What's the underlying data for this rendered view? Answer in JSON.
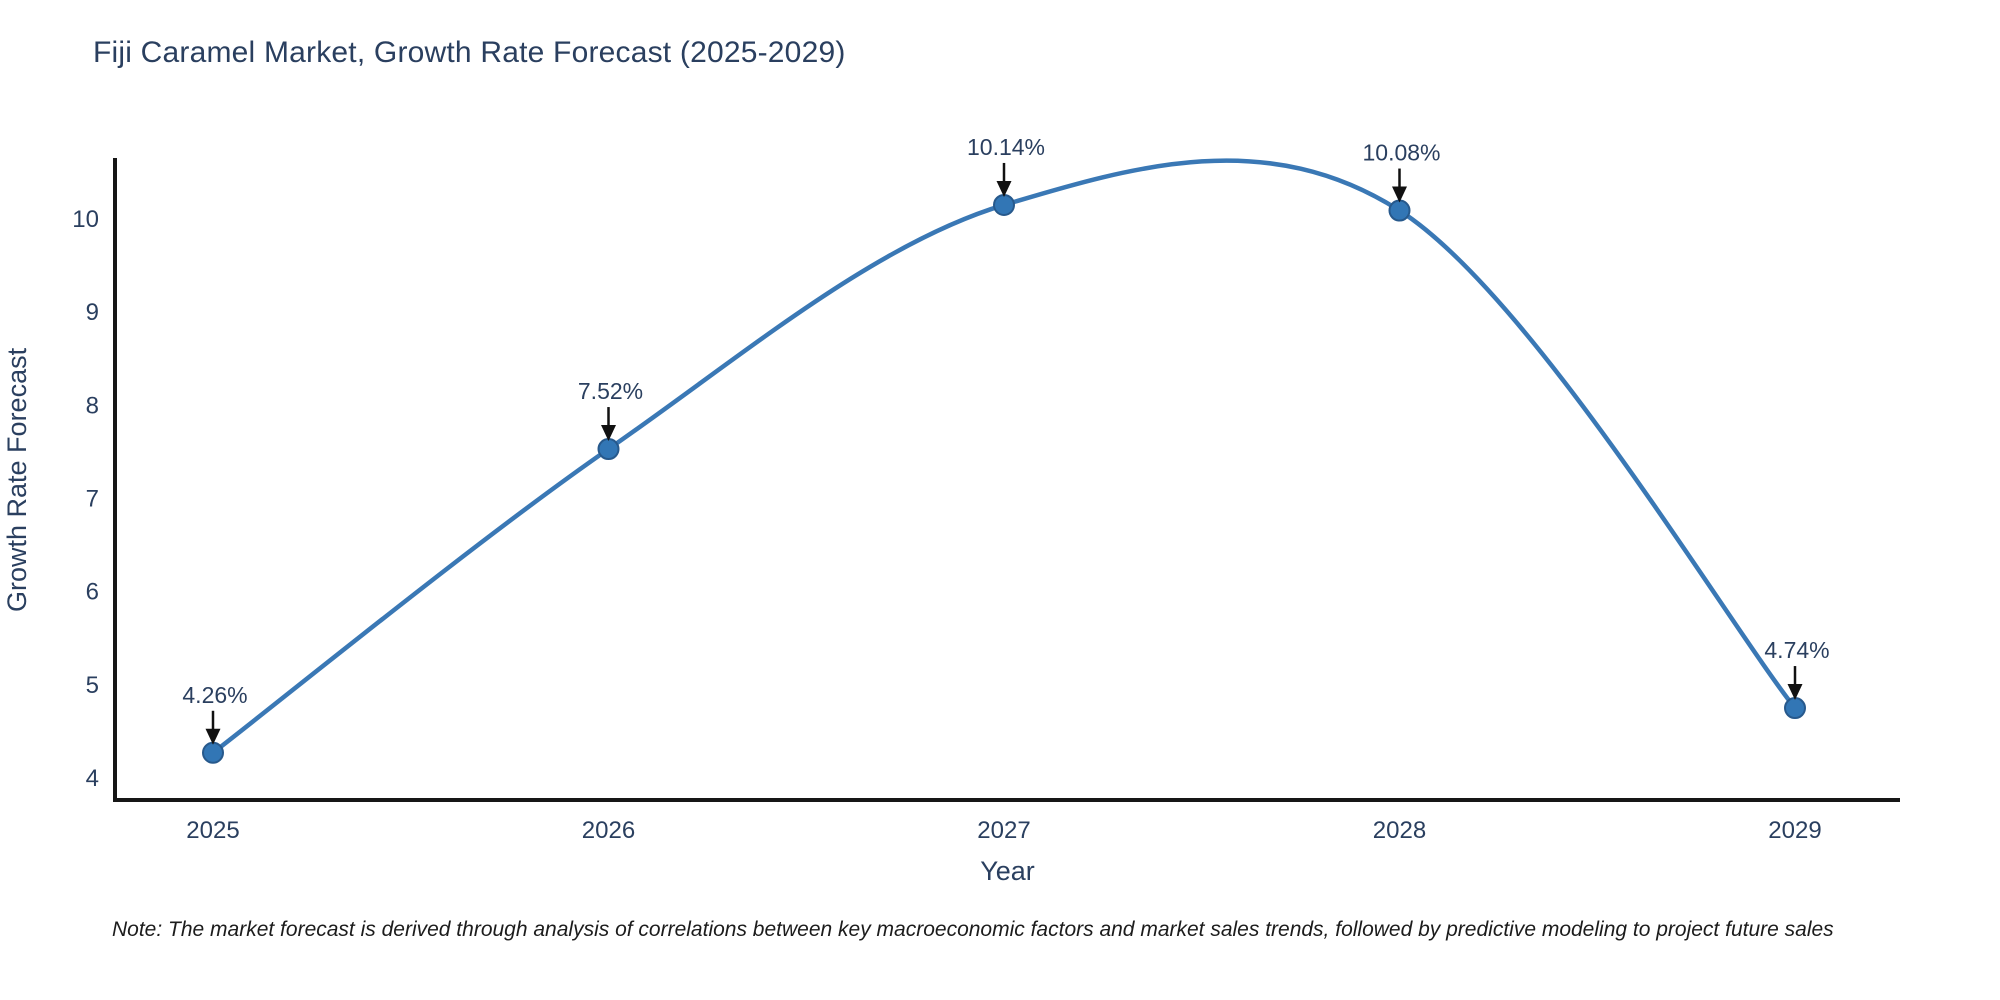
{
  "chart_data": {
    "type": "line",
    "title": "Fiji Caramel Market, Growth Rate Forecast (2025-2029)",
    "xlabel": "Year",
    "ylabel": "Growth Rate Forecast",
    "x": [
      2025,
      2026,
      2027,
      2028,
      2029
    ],
    "values": [
      4.26,
      7.52,
      10.14,
      10.08,
      4.74
    ],
    "point_labels": [
      "4.26%",
      "7.52%",
      "10.14%",
      "10.08%",
      "4.74%"
    ],
    "yticks": [
      4,
      5,
      6,
      7,
      8,
      9,
      10
    ],
    "ylim": [
      3.75,
      10.65
    ],
    "line_style": "spline",
    "grid": false,
    "legend_position": "none",
    "line_color": "#3a78b5",
    "marker_color": "#3276b5",
    "marker_edge_color": "#27598c",
    "axis_color": "#161616",
    "text_color": "#2a3f5f",
    "annotation_arrow_color": "#111111",
    "note": "Note: The market forecast is derived through analysis of correlations between key macroeconomic factors and market sales trends, followed by predictive modeling to project future sales"
  }
}
